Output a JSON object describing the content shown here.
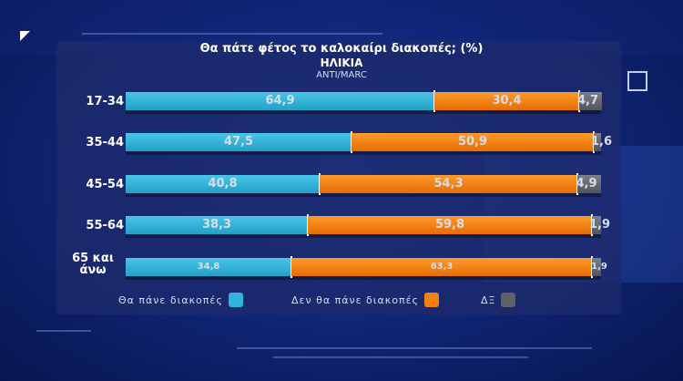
{
  "chart_data": {
    "type": "bar",
    "orientation": "horizontal",
    "stacked": true,
    "title": "Θα πάτε φέτος το καλοκαίρι διακοπές; (%)",
    "subtitle": "ΗΛΙΚΙΑ",
    "source": "ANTI/MARC",
    "categories": [
      "17-34",
      "35-44",
      "45-54",
      "55-64",
      "65 και άνω"
    ],
    "series": [
      {
        "name": "Θα πάνε διακοπές",
        "color": "#2fb4dc",
        "values": [
          64.9,
          47.5,
          40.8,
          38.3,
          34.8
        ],
        "labels": [
          "64,9",
          "47,5",
          "40,8",
          "38,3",
          "34,8"
        ]
      },
      {
        "name": "Δεν θα πάνε διακοπές",
        "color": "#f47f12",
        "values": [
          30.4,
          50.9,
          54.3,
          59.8,
          63.3
        ],
        "labels": [
          "30,4",
          "50,9",
          "54,3",
          "59,8",
          "63,3"
        ]
      },
      {
        "name": "ΔΞ",
        "color": "#5f626b",
        "values": [
          4.7,
          1.6,
          4.9,
          1.9,
          1.9
        ],
        "labels": [
          "4,7",
          "1,6",
          "4,9",
          "1,9",
          "1,9"
        ]
      }
    ],
    "xlim": [
      0,
      100
    ],
    "grid": false,
    "legend_position": "bottom"
  }
}
